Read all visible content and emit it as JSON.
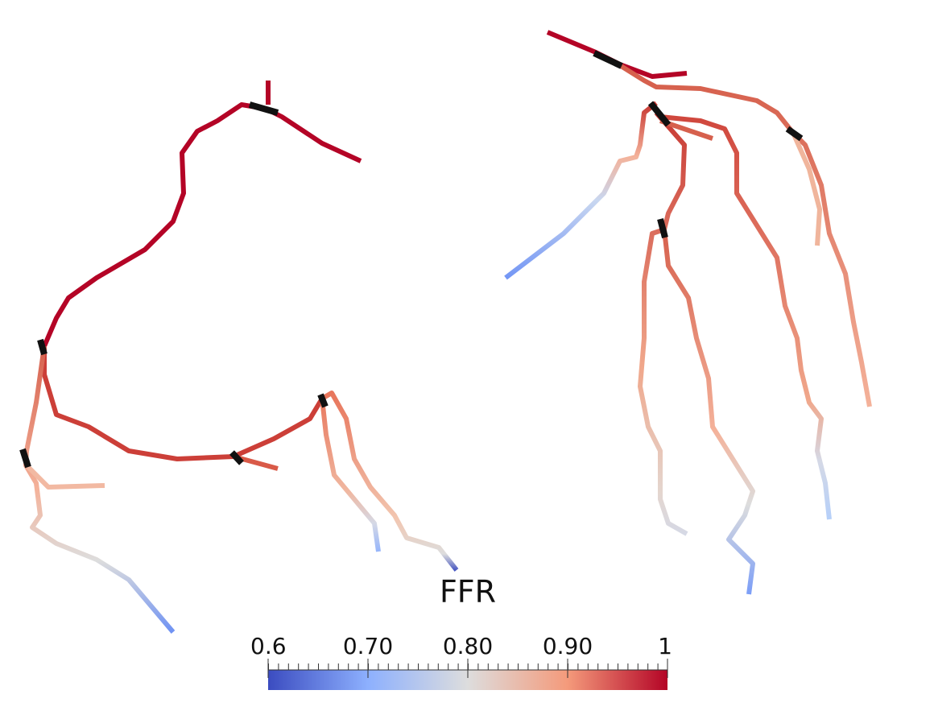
{
  "colorbar": {
    "title": "FFR",
    "range": [
      0.6,
      1
    ],
    "ticks": [
      0.6,
      {
        "value": 0.7,
        "label": "0.70"
      },
      {
        "value": 0.8,
        "label": "0.80"
      },
      {
        "value": 0.9,
        "label": "0.90"
      },
      1
    ],
    "colors": [
      "#3b4cc0",
      "#8db0fe",
      "#dddddd",
      "#f49a7b",
      "#b40426"
    ]
  }
}
